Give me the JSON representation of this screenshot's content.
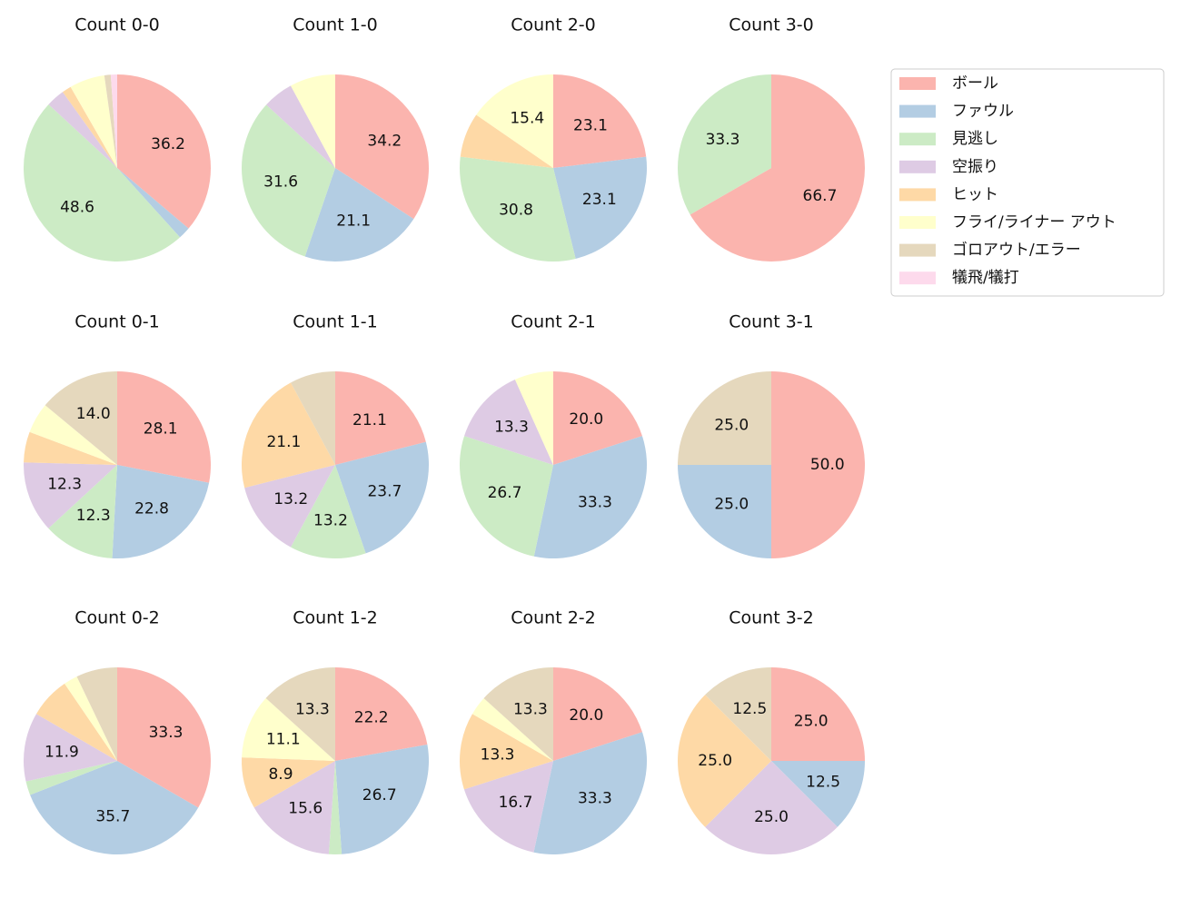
{
  "chart_data": [
    {
      "type": "pie",
      "title": "Count 0-0",
      "categories": [
        "ボール",
        "ファウル",
        "見逃し",
        "空振り",
        "ヒット",
        "フライ/ライナー アウト",
        "ゴロアウト/エラー",
        "犠飛/犠打"
      ],
      "colors": [
        "#fbb4ae",
        "#b3cde3",
        "#ccebc5",
        "#decbe4",
        "#fed9a6",
        "#ffffcc",
        "#e5d8bd",
        "#fddaec"
      ],
      "values": [
        36.2,
        2.1,
        48.6,
        3.2,
        1.6,
        6.1,
        1.1,
        1.1
      ],
      "value_labels": [
        "36.2",
        null,
        "48.6",
        null,
        null,
        null,
        null,
        null
      ]
    },
    {
      "type": "pie",
      "title": "Count 1-0",
      "categories": [
        "ボール",
        "ファウル",
        "見逃し",
        "空振り",
        "ヒット",
        "フライ/ライナー アウト",
        "ゴロアウト/エラー",
        "犠飛/犠打"
      ],
      "colors": [
        "#fbb4ae",
        "#b3cde3",
        "#ccebc5",
        "#decbe4",
        "#fed9a6",
        "#ffffcc",
        "#e5d8bd",
        "#fddaec"
      ],
      "values": [
        34.2,
        21.1,
        31.6,
        5.3,
        0,
        7.9,
        0,
        0
      ],
      "value_labels": [
        "34.2",
        "21.1",
        "31.6",
        null,
        null,
        null,
        null,
        null
      ]
    },
    {
      "type": "pie",
      "title": "Count 2-0",
      "categories": [
        "ボール",
        "ファウル",
        "見逃し",
        "空振り",
        "ヒット",
        "フライ/ライナー アウト",
        "ゴロアウト/エラー",
        "犠飛/犠打"
      ],
      "colors": [
        "#fbb4ae",
        "#b3cde3",
        "#ccebc5",
        "#decbe4",
        "#fed9a6",
        "#ffffcc",
        "#e5d8bd",
        "#fddaec"
      ],
      "values": [
        23.1,
        23.1,
        30.8,
        0,
        7.7,
        15.4,
        0,
        0
      ],
      "value_labels": [
        "23.1",
        "23.1",
        "30.8",
        null,
        null,
        "15.4",
        null,
        null
      ]
    },
    {
      "type": "pie",
      "title": "Count 3-0",
      "categories": [
        "ボール",
        "ファウル",
        "見逃し",
        "空振り",
        "ヒット",
        "フライ/ライナー アウト",
        "ゴロアウト/エラー",
        "犠飛/犠打"
      ],
      "colors": [
        "#fbb4ae",
        "#b3cde3",
        "#ccebc5",
        "#decbe4",
        "#fed9a6",
        "#ffffcc",
        "#e5d8bd",
        "#fddaec"
      ],
      "values": [
        66.7,
        0,
        33.3,
        0,
        0,
        0,
        0,
        0
      ],
      "value_labels": [
        "66.7",
        null,
        "33.3",
        null,
        null,
        null,
        null,
        null
      ]
    },
    {
      "type": "pie",
      "title": "Count 0-1",
      "categories": [
        "ボール",
        "ファウル",
        "見逃し",
        "空振り",
        "ヒット",
        "フライ/ライナー アウト",
        "ゴロアウト/エラー",
        "犠飛/犠打"
      ],
      "colors": [
        "#fbb4ae",
        "#b3cde3",
        "#ccebc5",
        "#decbe4",
        "#fed9a6",
        "#ffffcc",
        "#e5d8bd",
        "#fddaec"
      ],
      "values": [
        28.1,
        22.8,
        12.3,
        12.3,
        5.3,
        5.3,
        14.0,
        0
      ],
      "value_labels": [
        "28.1",
        "22.8",
        "12.3",
        "12.3",
        null,
        null,
        "14.0",
        null
      ]
    },
    {
      "type": "pie",
      "title": "Count 1-1",
      "categories": [
        "ボール",
        "ファウル",
        "見逃し",
        "空振り",
        "ヒット",
        "フライ/ライナー アウト",
        "ゴロアウト/エラー",
        "犠飛/犠打"
      ],
      "colors": [
        "#fbb4ae",
        "#b3cde3",
        "#ccebc5",
        "#decbe4",
        "#fed9a6",
        "#ffffcc",
        "#e5d8bd",
        "#fddaec"
      ],
      "values": [
        21.1,
        23.7,
        13.2,
        13.2,
        21.1,
        0,
        7.9,
        0
      ],
      "value_labels": [
        "21.1",
        "23.7",
        "13.2",
        "13.2",
        "21.1",
        null,
        null,
        null
      ]
    },
    {
      "type": "pie",
      "title": "Count 2-1",
      "categories": [
        "ボール",
        "ファウル",
        "見逃し",
        "空振り",
        "ヒット",
        "フライ/ライナー アウト",
        "ゴロアウト/エラー",
        "犠飛/犠打"
      ],
      "colors": [
        "#fbb4ae",
        "#b3cde3",
        "#ccebc5",
        "#decbe4",
        "#fed9a6",
        "#ffffcc",
        "#e5d8bd",
        "#fddaec"
      ],
      "values": [
        20.0,
        33.3,
        26.7,
        13.3,
        0,
        6.7,
        0,
        0
      ],
      "value_labels": [
        "20.0",
        "33.3",
        "26.7",
        "13.3",
        null,
        null,
        null,
        null
      ]
    },
    {
      "type": "pie",
      "title": "Count 3-1",
      "categories": [
        "ボール",
        "ファウル",
        "見逃し",
        "空振り",
        "ヒット",
        "フライ/ライナー アウト",
        "ゴロアウト/エラー",
        "犠飛/犠打"
      ],
      "colors": [
        "#fbb4ae",
        "#b3cde3",
        "#ccebc5",
        "#decbe4",
        "#fed9a6",
        "#ffffcc",
        "#e5d8bd",
        "#fddaec"
      ],
      "values": [
        50.0,
        25.0,
        0,
        0,
        0,
        0,
        25.0,
        0
      ],
      "value_labels": [
        "50.0",
        "25.0",
        null,
        null,
        null,
        null,
        "25.0",
        null
      ]
    },
    {
      "type": "pie",
      "title": "Count 0-2",
      "categories": [
        "ボール",
        "ファウル",
        "見逃し",
        "空振り",
        "ヒット",
        "フライ/ライナー アウト",
        "ゴロアウト/エラー",
        "犠飛/犠打"
      ],
      "colors": [
        "#fbb4ae",
        "#b3cde3",
        "#ccebc5",
        "#decbe4",
        "#fed9a6",
        "#ffffcc",
        "#e5d8bd",
        "#fddaec"
      ],
      "values": [
        33.3,
        35.7,
        2.4,
        11.9,
        7.1,
        2.4,
        7.1,
        0
      ],
      "value_labels": [
        "33.3",
        "35.7",
        null,
        "11.9",
        null,
        null,
        null,
        null
      ]
    },
    {
      "type": "pie",
      "title": "Count 1-2",
      "categories": [
        "ボール",
        "ファウル",
        "見逃し",
        "空振り",
        "ヒット",
        "フライ/ライナー アウト",
        "ゴロアウト/エラー",
        "犠飛/犠打"
      ],
      "colors": [
        "#fbb4ae",
        "#b3cde3",
        "#ccebc5",
        "#decbe4",
        "#fed9a6",
        "#ffffcc",
        "#e5d8bd",
        "#fddaec"
      ],
      "values": [
        22.2,
        26.7,
        2.2,
        15.6,
        8.9,
        11.1,
        13.3,
        0
      ],
      "value_labels": [
        "22.2",
        "26.7",
        null,
        "15.6",
        "8.9",
        "11.1",
        "13.3",
        null
      ]
    },
    {
      "type": "pie",
      "title": "Count 2-2",
      "categories": [
        "ボール",
        "ファウル",
        "見逃し",
        "空振り",
        "ヒット",
        "フライ/ライナー アウト",
        "ゴロアウト/エラー",
        "犠飛/犠打"
      ],
      "colors": [
        "#fbb4ae",
        "#b3cde3",
        "#ccebc5",
        "#decbe4",
        "#fed9a6",
        "#ffffcc",
        "#e5d8bd",
        "#fddaec"
      ],
      "values": [
        20.0,
        33.3,
        0,
        16.7,
        13.3,
        3.3,
        13.3,
        0
      ],
      "value_labels": [
        "20.0",
        "33.3",
        null,
        "16.7",
        "13.3",
        null,
        "13.3",
        null
      ]
    },
    {
      "type": "pie",
      "title": "Count 3-2",
      "categories": [
        "ボール",
        "ファウル",
        "見逃し",
        "空振り",
        "ヒット",
        "フライ/ライナー アウト",
        "ゴロアウト/エラー",
        "犠飛/犠打"
      ],
      "colors": [
        "#fbb4ae",
        "#b3cde3",
        "#ccebc5",
        "#decbe4",
        "#fed9a6",
        "#ffffcc",
        "#e5d8bd",
        "#fddaec"
      ],
      "values": [
        25.0,
        12.5,
        0,
        25.0,
        25.0,
        0,
        12.5,
        0
      ],
      "value_labels": [
        "25.0",
        "12.5",
        null,
        "25.0",
        "25.0",
        null,
        "12.5",
        null
      ]
    }
  ]
}
